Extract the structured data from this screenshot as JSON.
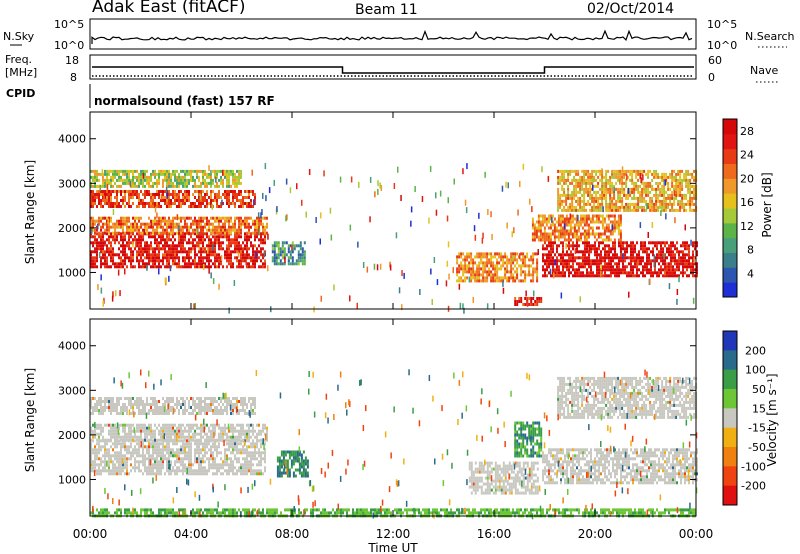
{
  "header": {
    "station": "Adak East (fitACF)",
    "beam": "Beam 11",
    "date": "02/Oct/2014"
  },
  "noise_panel": {
    "left_label": "N.Sky",
    "right_label": "N.Search",
    "left_ticks": [
      "10^5",
      "10^0"
    ],
    "right_ticks": [
      "10^5",
      "10^0"
    ]
  },
  "freq_panel": {
    "left_label_1": "Freq.",
    "left_label_2": "[MHz]",
    "right_label": "Nave",
    "left_ticks": [
      "18",
      "8"
    ],
    "right_ticks": [
      "60",
      "0"
    ],
    "cpid_label": "CPID",
    "cpid_text": "normalsound (fast) 157 RF"
  },
  "chart_data": [
    {
      "type": "heatmap",
      "title": "",
      "xlabel": "Time UT",
      "ylabel": "Slant Range [km]",
      "x_ticks": [
        "00:00",
        "04:00",
        "08:00",
        "12:00",
        "16:00",
        "20:00",
        "00:00"
      ],
      "x_range_hours": [
        0,
        24
      ],
      "y_ticks": [
        1000,
        2000,
        3000,
        4000
      ],
      "ylim": [
        180,
        4600
      ],
      "colorbar": {
        "label": "Power [dB]",
        "ticks": [
          4,
          8,
          12,
          16,
          20,
          24,
          28
        ],
        "range": [
          0,
          30
        ],
        "colors": [
          "#1f2fd6",
          "#2c56b0",
          "#3a7f8a",
          "#48a07a",
          "#5cb34a",
          "#a6c93a",
          "#e6c11e",
          "#f0982a",
          "#ee6a1c",
          "#e83a14",
          "#e01410",
          "#d40808"
        ]
      },
      "echo_regions": [
        {
          "t": [
            0.0,
            6.9
          ],
          "r": [
            1100,
            1900
          ],
          "level": 27
        },
        {
          "t": [
            0.0,
            7.0
          ],
          "r": [
            1900,
            2250
          ],
          "level": 21
        },
        {
          "t": [
            0.0,
            6.5
          ],
          "r": [
            2450,
            2850
          ],
          "level": 24
        },
        {
          "t": [
            0.0,
            6.0
          ],
          "r": [
            2900,
            3300
          ],
          "level": 14
        },
        {
          "t": [
            7.2,
            8.5
          ],
          "r": [
            1200,
            1700
          ],
          "level": 8
        },
        {
          "t": [
            14.5,
            17.7
          ],
          "r": [
            800,
            1450
          ],
          "level": 20
        },
        {
          "t": [
            16.8,
            17.9
          ],
          "r": [
            250,
            450
          ],
          "level": 26
        },
        {
          "t": [
            17.9,
            24.0
          ],
          "r": [
            900,
            1700
          ],
          "level": 28
        },
        {
          "t": [
            17.5,
            21.0
          ],
          "r": [
            1750,
            2300
          ],
          "level": 20
        },
        {
          "t": [
            18.5,
            24.0
          ],
          "r": [
            2400,
            3300
          ],
          "level": 18
        }
      ]
    },
    {
      "type": "heatmap",
      "title": "",
      "xlabel": "Time UT",
      "ylabel": "Slant Range [km]",
      "x_ticks": [
        "00:00",
        "04:00",
        "08:00",
        "12:00",
        "16:00",
        "20:00",
        "00:00"
      ],
      "x_range_hours": [
        0,
        24
      ],
      "y_ticks": [
        1000,
        2000,
        3000,
        4000
      ],
      "ylim": [
        180,
        4600
      ],
      "colorbar": {
        "label": "Velocity [m s⁻¹]",
        "ticks": [
          200,
          100,
          50,
          15,
          -15,
          -50,
          -100,
          -200
        ],
        "colors": [
          "#2038b8",
          "#2a6a8a",
          "#3a9e48",
          "#6cc636",
          "#c8c8c0",
          "#f0b014",
          "#f08010",
          "#f04410",
          "#e01010"
        ]
      },
      "echo_regions": [
        {
          "t": [
            0.0,
            6.9
          ],
          "r": [
            1100,
            1900
          ],
          "level": 0
        },
        {
          "t": [
            0.0,
            7.0
          ],
          "r": [
            1900,
            2250
          ],
          "level": 0
        },
        {
          "t": [
            0.0,
            6.5
          ],
          "r": [
            2450,
            2850
          ],
          "level": 0
        },
        {
          "t": [
            7.4,
            8.6
          ],
          "r": [
            1100,
            1650
          ],
          "level": 70
        },
        {
          "t": [
            15.0,
            17.7
          ],
          "r": [
            700,
            1400
          ],
          "level": 0
        },
        {
          "t": [
            16.8,
            17.9
          ],
          "r": [
            1500,
            2300
          ],
          "level": 60
        },
        {
          "t": [
            17.9,
            24.0
          ],
          "r": [
            900,
            1700
          ],
          "level": 0
        },
        {
          "t": [
            18.5,
            24.0
          ],
          "r": [
            2400,
            3300
          ],
          "level": 0
        },
        {
          "t": [
            0.0,
            24.0
          ],
          "r": [
            180,
            350
          ],
          "level": 30
        }
      ]
    }
  ]
}
